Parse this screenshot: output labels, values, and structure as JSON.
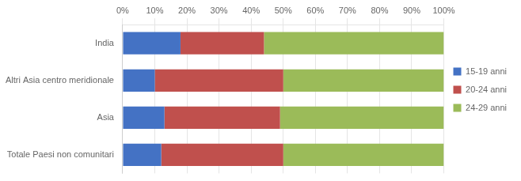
{
  "chart_data": {
    "type": "bar",
    "orientation": "horizontal",
    "stacked": true,
    "categories": [
      "India",
      "Altri Asia centro meridionale",
      "Asia",
      "Totale Paesi non comunitari"
    ],
    "series": [
      {
        "name": "15-19 anni",
        "color": "#4472C4",
        "values": [
          18,
          10,
          13,
          12
        ]
      },
      {
        "name": "20-24 anni",
        "color": "#C0504D",
        "values": [
          26,
          40,
          36,
          38
        ]
      },
      {
        "name": "24-29 anni",
        "color": "#9BBB59",
        "values": [
          56,
          50,
          51,
          50
        ]
      }
    ],
    "xlim": [
      0,
      100
    ],
    "xticks": [
      {
        "value": 0,
        "label": "0%"
      },
      {
        "value": 10,
        "label": "10%"
      },
      {
        "value": 20,
        "label": "20%"
      },
      {
        "value": 30,
        "label": "30%"
      },
      {
        "value": 40,
        "label": "40%"
      },
      {
        "value": 50,
        "label": "50%"
      },
      {
        "value": 60,
        "label": "60%"
      },
      {
        "value": 70,
        "label": "70%"
      },
      {
        "value": 80,
        "label": "80%"
      },
      {
        "value": 90,
        "label": "90%"
      },
      {
        "value": 100,
        "label": "100%"
      }
    ],
    "grid": true,
    "legend": "right"
  }
}
